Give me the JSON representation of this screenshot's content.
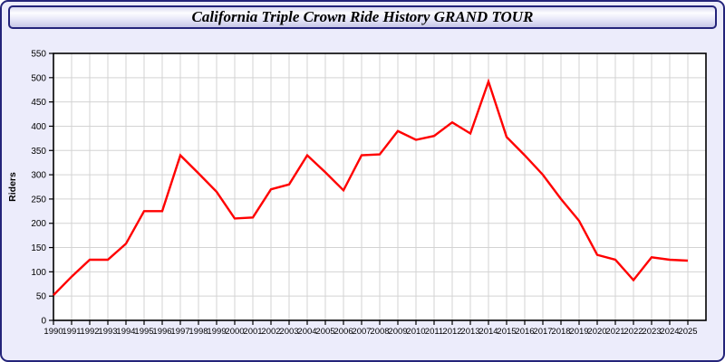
{
  "window": {
    "title": "California Triple Crown Ride History GRAND TOUR"
  },
  "chart_data": {
    "type": "line",
    "title": "California Triple Crown Ride History GRAND TOUR",
    "xlabel": "",
    "ylabel": "Riders",
    "x": [
      1990,
      1991,
      1992,
      1993,
      1994,
      1995,
      1996,
      1997,
      1998,
      1999,
      2000,
      2001,
      2002,
      2003,
      2004,
      2005,
      2006,
      2007,
      2008,
      2009,
      2010,
      2011,
      2012,
      2013,
      2014,
      2015,
      2016,
      2017,
      2018,
      2019,
      2020,
      2021,
      2022,
      2023,
      2024,
      2025
    ],
    "series": [
      {
        "name": "Riders",
        "color": "#ff0000",
        "values": [
          52,
          90,
          125,
          125,
          158,
          225,
          225,
          340,
          303,
          265,
          210,
          212,
          270,
          280,
          340,
          305,
          268,
          340,
          342,
          390,
          372,
          380,
          408,
          385,
          492,
          378,
          340,
          300,
          250,
          205,
          135,
          125,
          83,
          130,
          125,
          123
        ]
      }
    ],
    "ylim": [
      0,
      550
    ],
    "ytick_step": 50,
    "grid": true,
    "legend_position": "none"
  },
  "colors": {
    "line": "#ff0000",
    "window_background": "#ececfb",
    "plot_background": "#ffffff",
    "gridline": "#d3d3d3",
    "axis": "#000000",
    "frame_border": "#24247a"
  }
}
